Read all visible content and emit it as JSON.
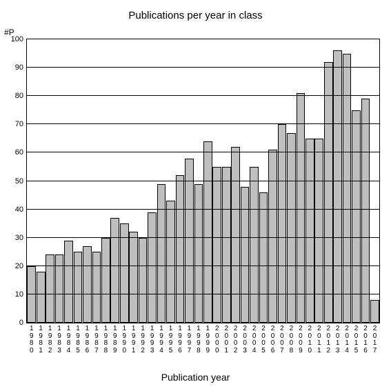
{
  "chart": {
    "type": "bar",
    "title": "Publications per year in class",
    "title_fontsize": 15,
    "xlabel": "Publication year",
    "ylabel": "#P",
    "label_fontsize": 14,
    "background_color": "#ffffff",
    "bar_fill_color": "#bfbfbf",
    "bar_border_color": "#000000",
    "axis_color": "#000000",
    "grid_color": "#000000",
    "bar_width": 0.94,
    "ylim": [
      0,
      100
    ],
    "ytick_step": 10,
    "yticks": [
      0,
      10,
      20,
      30,
      40,
      50,
      60,
      70,
      80,
      90,
      100
    ],
    "tick_fontsize": 11,
    "categories": [
      "1980",
      "1981",
      "1982",
      "1983",
      "1984",
      "1985",
      "1986",
      "1987",
      "1988",
      "1989",
      "1990",
      "1991",
      "1992",
      "1993",
      "1994",
      "1995",
      "1996",
      "1997",
      "1998",
      "1999",
      "2000",
      "2001",
      "2002",
      "2003",
      "2004",
      "2005",
      "2006",
      "2007",
      "2008",
      "2009",
      "2010",
      "2011",
      "2012",
      "2013",
      "2014",
      "2015",
      "2016",
      "2017"
    ],
    "values": [
      20,
      18,
      24,
      24,
      29,
      25,
      27,
      25,
      30,
      37,
      35,
      32,
      30,
      39,
      49,
      43,
      52,
      58,
      49,
      64,
      55,
      55,
      62,
      48,
      55,
      46,
      61,
      70,
      67,
      81,
      65,
      65,
      92,
      96,
      95,
      75,
      79,
      8
    ]
  }
}
